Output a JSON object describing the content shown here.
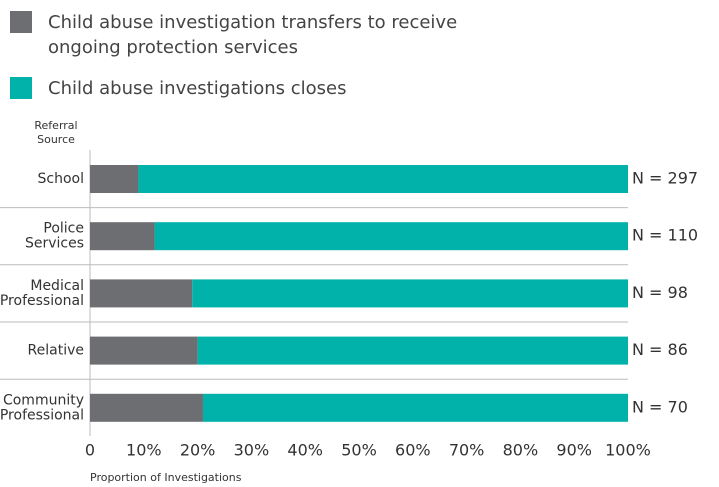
{
  "chart_data": {
    "type": "stacked_barh",
    "ylabel": "Referral Source",
    "xlabel": "Proportion of Investigations",
    "categories": [
      [
        "School"
      ],
      [
        "Police",
        "Services"
      ],
      [
        "Medical",
        "Professional"
      ],
      [
        "Relative"
      ],
      [
        "Community",
        "Professional"
      ]
    ],
    "series": [
      {
        "name": "Child abuse investigation transfers to receive ongoing protection services",
        "color": "#6d6e71",
        "values": [
          9,
          12,
          19,
          20,
          21
        ]
      },
      {
        "name": "Child abuse investigations closes",
        "color": "#00b2a9",
        "values": [
          91,
          88,
          81,
          80,
          79
        ]
      }
    ],
    "annotations": [
      "N = 297",
      "N = 110",
      "N = 98",
      "N = 86",
      "N = 70"
    ],
    "xlim": [
      0,
      100
    ],
    "xticks": [
      0,
      {
        "value": 10,
        "label": "10%"
      },
      {
        "value": 20,
        "label": "20%"
      },
      {
        "value": 30,
        "label": "30%"
      },
      {
        "value": 40,
        "label": "40%"
      },
      {
        "value": 50,
        "label": "50%"
      },
      {
        "value": 60,
        "label": "60%"
      },
      {
        "value": 70,
        "label": "70%"
      },
      {
        "value": 80,
        "label": "80%"
      },
      {
        "value": 90,
        "label": "90%"
      },
      {
        "value": 100,
        "label": "100%"
      }
    ],
    "grid": false
  }
}
